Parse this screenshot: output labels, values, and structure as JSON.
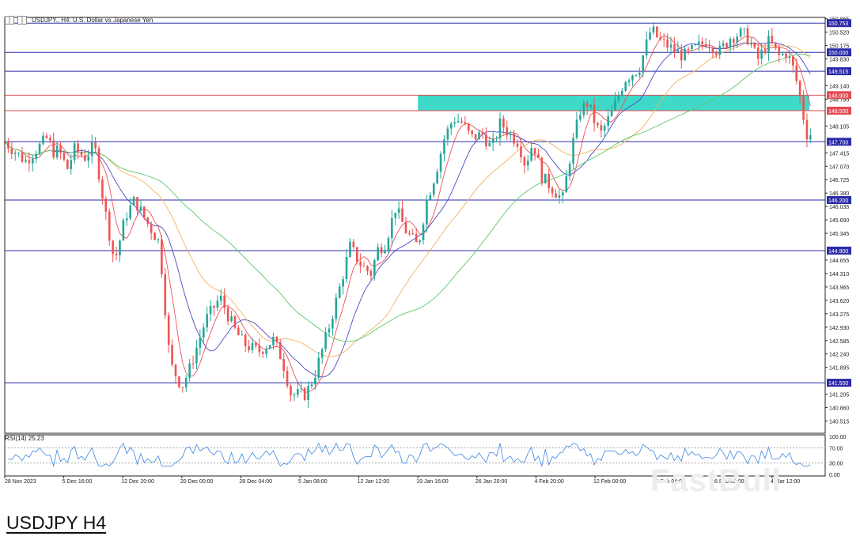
{
  "window": {
    "symbol_title": "USDJPY., H4:  U.S. Dollar vs Japanese Yen",
    "rsi_label": "RSI(14) 25.23",
    "watermark": "FastBull"
  },
  "caption": "USDJPY H4",
  "colors": {
    "bull": "#26a69a",
    "bear": "#ef5350",
    "ma_fast": "#e8525a",
    "ma_mid": "#4a4ac8",
    "ma_slow": "#f4b35a",
    "ma_long": "#5cc86a",
    "hline_blue": "#2b2ba8",
    "hline_red": "#e04b55",
    "zone": "#3fd9c9",
    "rsi": "#3d85e0",
    "axis": "#222222",
    "grid": "#cccccc"
  },
  "chart_data": {
    "type": "line",
    "title": "USDJPY., H4:  U.S. Dollar vs Japanese Yen",
    "price_axis": {
      "range": [
        140.2,
        150.9
      ],
      "tick_labels": [
        "150.865",
        "150.520",
        "150.175",
        "149.830",
        "149.140",
        "148.795",
        "148.105",
        "147.415",
        "147.070",
        "146.725",
        "146.380",
        "146.035",
        "145.690",
        "145.345",
        "144.655",
        "144.310",
        "143.965",
        "143.620",
        "143.275",
        "142.930",
        "142.585",
        "142.240",
        "141.895",
        "141.205",
        "140.860",
        "140.515"
      ]
    },
    "time_axis": {
      "tick_labels": [
        "28 Nov 2023",
        "5 Dec 16:00",
        "12 Dec 20:00",
        "20 Dec 00:00",
        "28 Dec 04:00",
        "5 Jan 08:00",
        "12 Jan 12:00",
        "19 Jan 16:00",
        "26 Jan 20:00",
        "4 Feb 20:00",
        "12 Feb 00:00",
        "19 Feb 04:00",
        "26 Feb 08:00",
        "4 Mar 12:00"
      ]
    },
    "levels": [
      {
        "value": 150.753,
        "label": "150.753",
        "color": "blue"
      },
      {
        "value": 150.0,
        "label": "150.000",
        "color": "blue"
      },
      {
        "value": 149.515,
        "label": "149.515",
        "color": "blue"
      },
      {
        "value": 148.9,
        "label": "148.900",
        "color": "red"
      },
      {
        "value": 148.5,
        "label": "148.500",
        "color": "red"
      },
      {
        "value": 147.7,
        "label": "147.700",
        "color": "blue"
      },
      {
        "value": 146.2,
        "label": "146.200",
        "color": "blue"
      },
      {
        "value": 144.9,
        "label": "144.900",
        "color": "blue"
      },
      {
        "value": 141.5,
        "label": "141.500",
        "color": "blue"
      }
    ],
    "zone": {
      "from": 148.5,
      "to": 148.9,
      "start_time": "19 Jan 16:00"
    },
    "path": {
      "time": [
        0,
        0.35,
        0.72,
        0.84,
        0.91,
        1.06,
        1.18,
        1.36,
        1.52,
        1.68,
        1.86,
        2.05,
        2.2,
        2.42,
        2.62,
        2.8,
        3.0,
        3.12,
        3.4,
        3.65,
        3.88,
        4.05,
        4.3,
        4.55,
        4.7,
        4.85,
        5.1,
        5.25,
        5.45,
        5.65,
        5.85,
        6.05,
        6.22,
        6.3,
        6.45,
        6.62,
        6.8,
        7.0,
        7.15,
        7.3,
        7.45,
        7.6,
        7.75,
        7.9,
        8.1,
        8.25,
        8.4,
        8.55,
        8.7,
        8.82,
        8.95,
        9.1,
        9.28,
        9.45,
        9.6,
        9.75,
        9.88,
        10.02,
        10.1,
        10.3,
        10.5,
        10.75,
        10.95,
        11.1,
        11.3,
        11.5,
        11.7,
        11.9,
        12.1,
        12.3,
        12.5,
        12.62,
        12.75,
        12.95,
        13.12,
        13.25,
        13.38,
        13.48,
        13.58,
        13.65
      ],
      "close": [
        147.7,
        147.2,
        147.8,
        147.4,
        147.5,
        147.0,
        147.5,
        147.3,
        147.6,
        146.1,
        144.6,
        145.8,
        146.2,
        145.6,
        145.1,
        142.0,
        141.4,
        141.8,
        143.1,
        143.7,
        142.9,
        142.5,
        142.3,
        142.6,
        142.1,
        141.2,
        141.2,
        141.7,
        142.7,
        143.8,
        145.0,
        144.5,
        144.3,
        144.9,
        145.1,
        146.0,
        145.4,
        145.0,
        146.2,
        146.9,
        147.8,
        148.3,
        148.2,
        147.8,
        147.9,
        147.5,
        148.2,
        147.9,
        147.7,
        147.1,
        147.7,
        146.8,
        146.5,
        146.2,
        147.5,
        148.5,
        148.7,
        148.1,
        147.9,
        148.5,
        149.3,
        149.6,
        150.6,
        150.3,
        150.1,
        149.9,
        150.1,
        150.3,
        150.0,
        150.4,
        150.5,
        150.3,
        149.8,
        150.3,
        149.9,
        150.0,
        149.5,
        148.8,
        147.9,
        147.9
      ]
    },
    "rsi": {
      "axis": [
        0,
        100
      ],
      "tick_labels": [
        "100.00",
        "70.00",
        "30.00",
        "0.00"
      ],
      "levels": [
        70,
        30
      ],
      "value": 25.23
    },
    "moving_average_colors": [
      "red",
      "blue",
      "orange",
      "green"
    ]
  }
}
